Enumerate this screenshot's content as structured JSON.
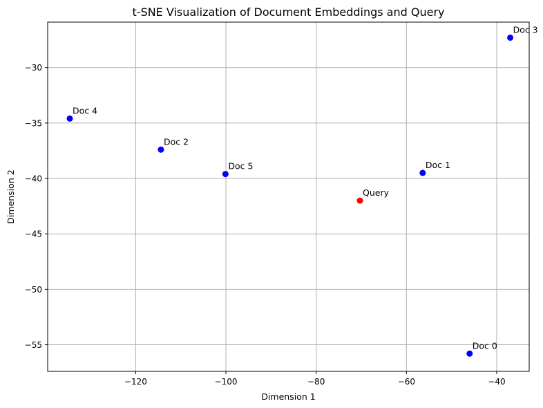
{
  "chart_data": {
    "type": "scatter",
    "title": "t-SNE Visualization of Document Embeddings and Query",
    "xlabel": "Dimension 1",
    "ylabel": "Dimension 2",
    "xlim": [
      -139.5,
      -32.8
    ],
    "ylim": [
      -57.4,
      -25.9
    ],
    "xticks": [
      -120,
      -100,
      -80,
      -60,
      -40
    ],
    "yticks": [
      -55,
      -50,
      -45,
      -40,
      -35,
      -30
    ],
    "grid": true,
    "colors": {
      "document": "#0000ff",
      "query": "#ff0000"
    },
    "points": [
      {
        "label": "Doc 0",
        "x": -46.0,
        "y": -55.8,
        "kind": "document"
      },
      {
        "label": "Doc 1",
        "x": -56.4,
        "y": -39.5,
        "kind": "document"
      },
      {
        "label": "Doc 2",
        "x": -114.4,
        "y": -37.4,
        "kind": "document"
      },
      {
        "label": "Doc 3",
        "x": -37.0,
        "y": -27.3,
        "kind": "document"
      },
      {
        "label": "Doc 4",
        "x": -134.6,
        "y": -34.6,
        "kind": "document"
      },
      {
        "label": "Doc 5",
        "x": -100.1,
        "y": -39.6,
        "kind": "document"
      },
      {
        "label": "Query",
        "x": -70.3,
        "y": -42.0,
        "kind": "query"
      }
    ]
  }
}
